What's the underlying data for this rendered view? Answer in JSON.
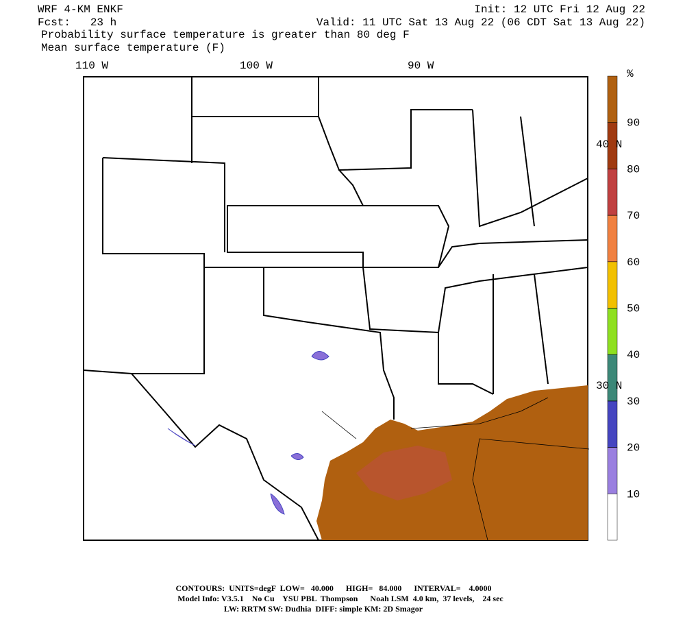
{
  "header": {
    "model": "WRF 4-KM ENKF",
    "forecast": "Fcst:   23 h",
    "init": "Init: 12 UTC Fri 12 Aug 22",
    "valid": "Valid: 11 UTC Sat 13 Aug 22 (06 CDT Sat 13 Aug 22)",
    "field1": "Probability surface temperature is greater than 80 deg F",
    "field2": "Mean surface temperature (F)"
  },
  "map": {
    "longitudes": [
      "110 W",
      "100 W",
      "90 W"
    ],
    "latitudes": [
      "40 N",
      "30 N"
    ]
  },
  "colorbar": {
    "label": "%",
    "lim": [
      0,
      100
    ],
    "ticks": [
      10,
      20,
      30,
      40,
      50,
      60,
      70,
      80,
      90
    ],
    "colors": [
      "#ffffff",
      "#9a7fe0",
      "#4545c0",
      "#3c8878",
      "#8ee020",
      "#f2c000",
      "#f08040",
      "#c04040",
      "#a03a10",
      "#b06010"
    ]
  },
  "footer": {
    "contours": "CONTOURS:  UNITS=degF  LOW=   40.000      HIGH=   84.000      INTERVAL=    4.0000",
    "model_info": "Model Info: V3.5.1    No Cu    YSU PBL  Thompson      Noah LSM  4.0 km,  37 levels,    24 sec",
    "physics": "LW: RRTM SW: Dudhia  DIFF: simple KM: 2D Smagor"
  }
}
